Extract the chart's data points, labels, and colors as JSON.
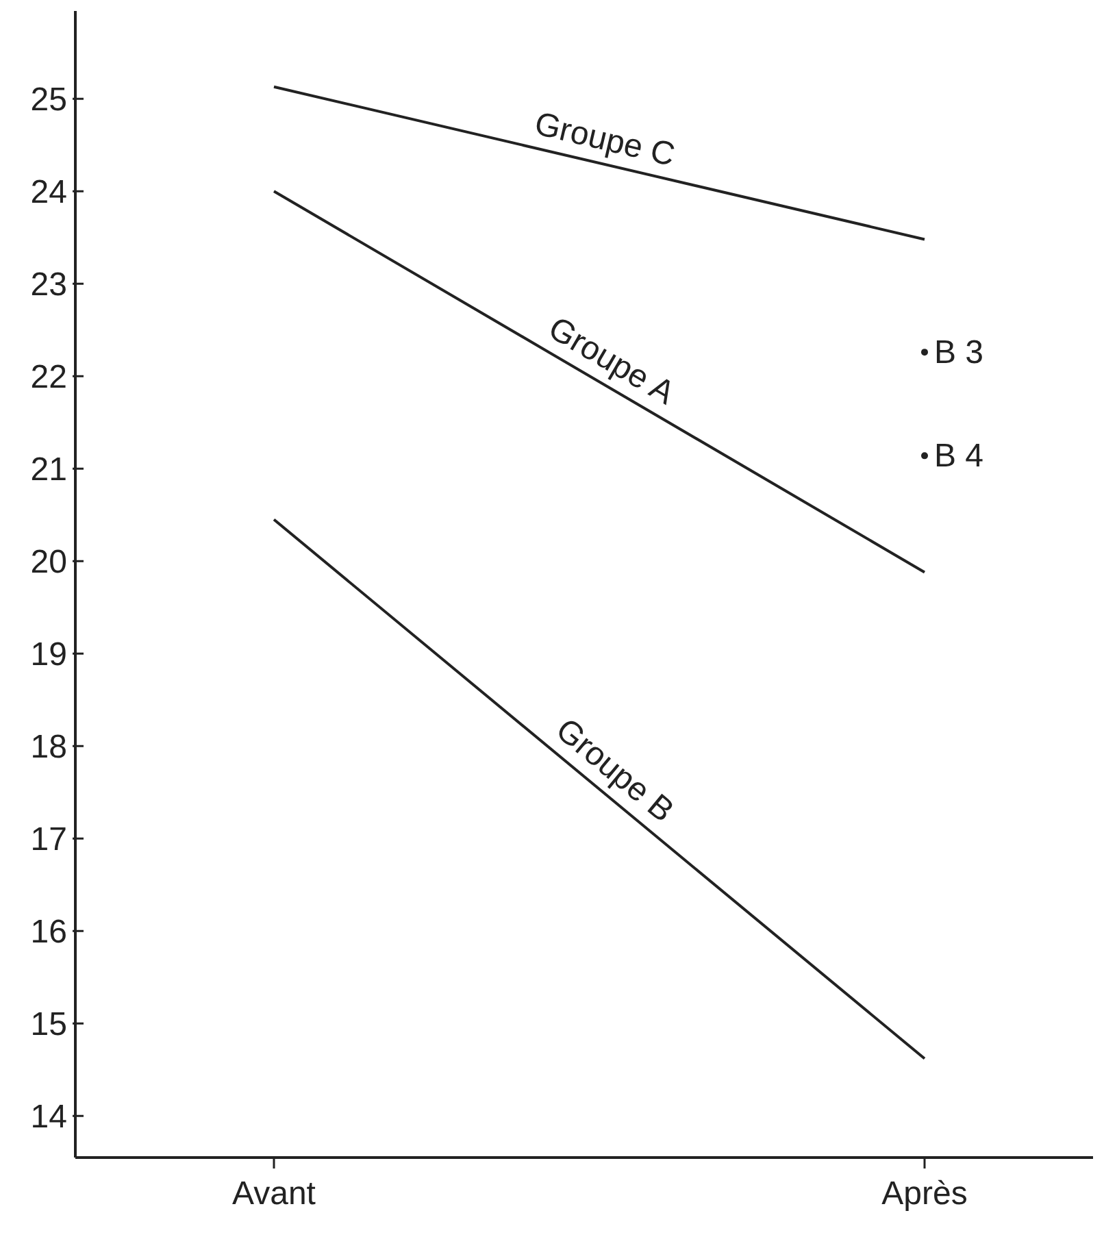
{
  "chart_data": {
    "type": "line",
    "categories": [
      "Avant",
      "Après"
    ],
    "ylim": [
      13.55,
      25.95
    ],
    "yticks": [
      14,
      15,
      16,
      17,
      18,
      19,
      20,
      21,
      22,
      23,
      24,
      25
    ],
    "grid": false,
    "line_style": "solid",
    "series": [
      {
        "name": "Groupe C",
        "color": "#222222",
        "values": [
          25.13,
          23.48
        ]
      },
      {
        "name": "Groupe A",
        "color": "#222222",
        "values": [
          24.0,
          19.88
        ]
      },
      {
        "name": "Groupe B",
        "color": "#222222",
        "values": [
          20.45,
          14.62
        ]
      },
      {
        "name": "B 3",
        "type": "scatter",
        "marker": "circle",
        "color": "#222222",
        "values": [
          null,
          22.26
        ]
      },
      {
        "name": "B 4",
        "type": "scatter",
        "marker": "circle",
        "color": "#222222",
        "values": [
          null,
          21.14
        ]
      }
    ]
  }
}
